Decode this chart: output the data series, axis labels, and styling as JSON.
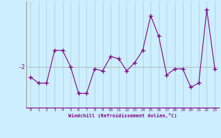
{
  "x": [
    0,
    1,
    2,
    3,
    4,
    5,
    6,
    7,
    8,
    9,
    10,
    11,
    12,
    13,
    14,
    15,
    16,
    17,
    18,
    19,
    20,
    21,
    22,
    23
  ],
  "y": [
    -2.5,
    -2.8,
    -2.8,
    -1.2,
    -1.2,
    -2.0,
    -3.3,
    -3.3,
    -2.1,
    -2.2,
    -1.5,
    -1.6,
    -2.2,
    -1.8,
    -1.2,
    0.5,
    -0.5,
    -2.4,
    -2.1,
    -2.1,
    -3.0,
    -2.8,
    0.8,
    -2.1
  ],
  "line_color": "#800080",
  "marker": "+",
  "bg_color": "#cceeff",
  "grid_color": "#aacccc",
  "xlabel": "Windchill (Refroidissement éolien,°C)",
  "xlim": [
    -0.5,
    23.5
  ],
  "ylim": [
    -4.0,
    1.2
  ],
  "ytick_val": -2,
  "xticks": [
    0,
    1,
    2,
    3,
    4,
    5,
    6,
    7,
    8,
    9,
    10,
    11,
    12,
    13,
    14,
    15,
    16,
    17,
    18,
    19,
    20,
    21,
    22,
    23
  ],
  "hline_y": -2.0,
  "hline_color": "#aabbbb",
  "left_spine_color": "#999999"
}
